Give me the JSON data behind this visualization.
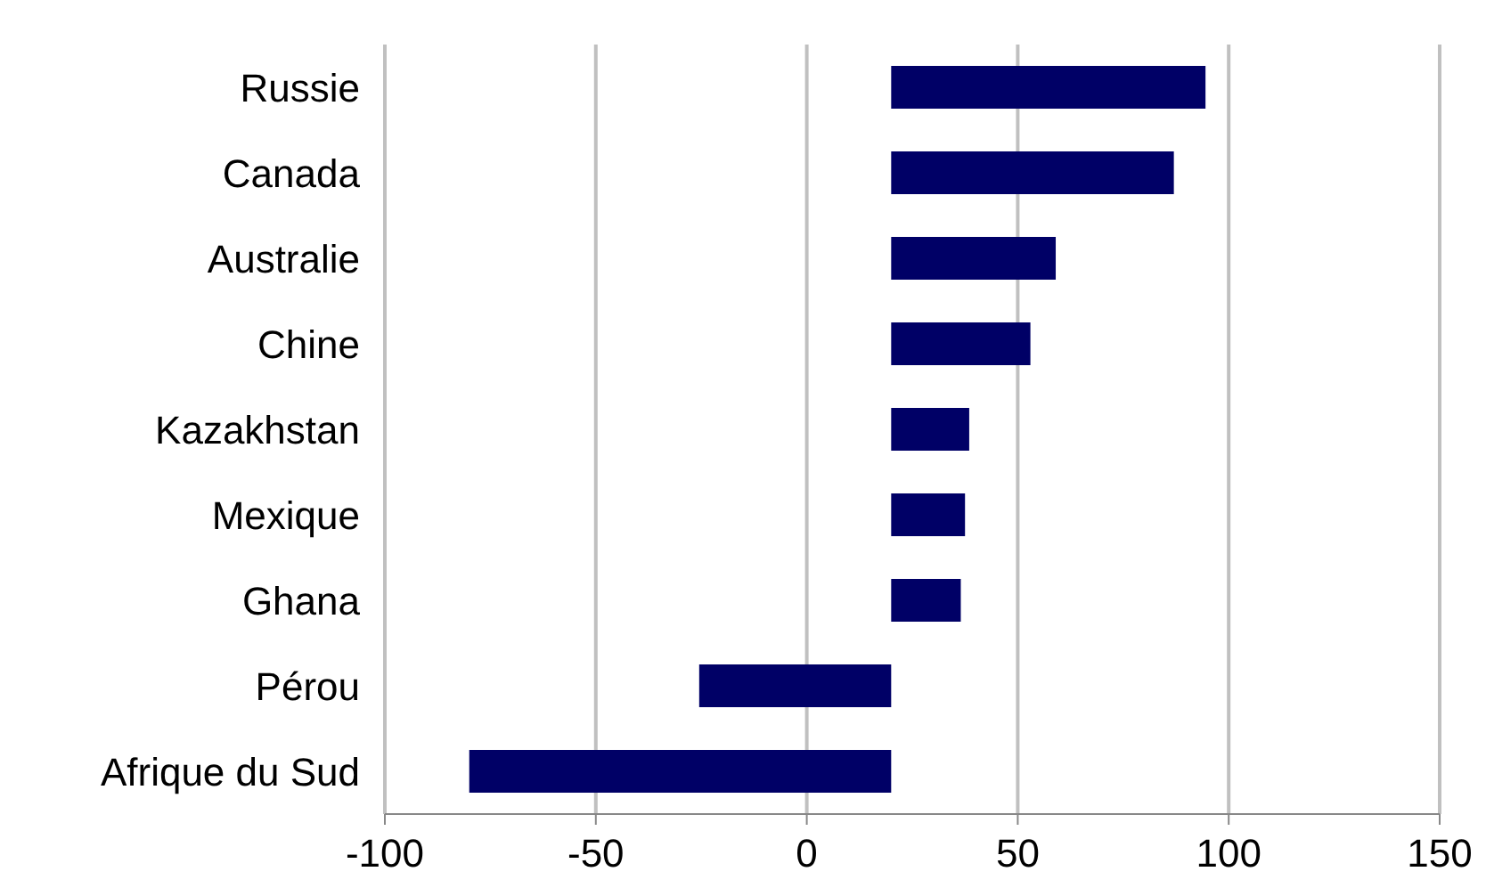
{
  "chart_data": {
    "type": "bar",
    "orientation": "horizontal",
    "categories": [
      "Russie",
      "Canada",
      "Australie",
      "Chine",
      "Kazakhstan",
      "Mexique",
      "Ghana",
      "Pérou",
      "Afrique du Sud"
    ],
    "base": [
      20,
      20,
      20,
      20,
      20,
      20,
      20,
      20,
      20
    ],
    "values": [
      74.5,
      67,
      39,
      33,
      18.5,
      17.5,
      16.5,
      -45.5,
      -100
    ],
    "color": "#000066",
    "xlim": [
      -100,
      150
    ],
    "xticks": [
      -100,
      -50,
      0,
      50,
      100,
      150
    ],
    "grid": "x",
    "legend": false
  }
}
